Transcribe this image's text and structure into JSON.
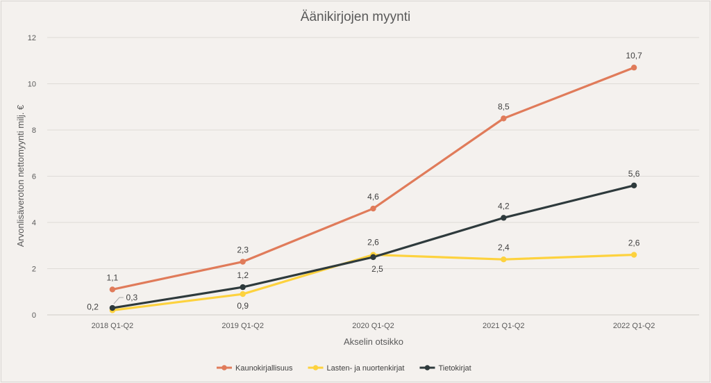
{
  "chart_data": {
    "type": "line",
    "title": "Äänikirjojen myynti",
    "xlabel": "Akselin otsikko",
    "ylabel": "Arvonlisäveroton nettomyynti milj. €",
    "ylim": [
      0,
      12
    ],
    "yticks": [
      "0",
      "2",
      "4",
      "6",
      "8",
      "10",
      "12"
    ],
    "categories": [
      "2018 Q1-Q2",
      "2019 Q1-Q2",
      "2020 Q1-Q2",
      "2021 Q1-Q2",
      "2022 Q1-Q2"
    ],
    "grid": true,
    "legend_position": "bottom",
    "series": [
      {
        "name": "Kaunokirjallisuus",
        "color": "#e07b5a",
        "values": [
          1.1,
          2.3,
          4.6,
          8.5,
          10.7
        ],
        "labels": [
          "1,1",
          "2,3",
          "4,6",
          "8,5",
          "10,7"
        ]
      },
      {
        "name": "Lasten- ja nuortenkirjat",
        "color": "#fdd23e",
        "values": [
          0.2,
          0.9,
          2.6,
          2.4,
          2.6
        ],
        "labels": [
          "0,2",
          "0,9",
          "2,6",
          "2,4",
          "2,6"
        ]
      },
      {
        "name": "Tietokirjat",
        "color": "#2e3a3c",
        "values": [
          0.3,
          1.2,
          2.5,
          4.2,
          5.6
        ],
        "labels": [
          "0,3",
          "1,2",
          "2,5",
          "4,2",
          "5,6"
        ]
      }
    ]
  }
}
